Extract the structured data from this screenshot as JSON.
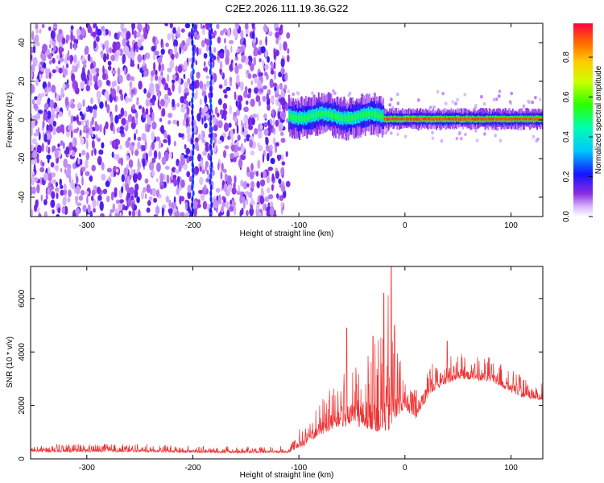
{
  "title": "C2E2.2026.111.19.36.G22",
  "chart_data": [
    {
      "type": "heatmap",
      "xlabel": "Height of straight line (km)",
      "ylabel": "Frequency (Hz)",
      "xlim": [
        -353,
        130
      ],
      "ylim": [
        -50,
        50
      ],
      "xticks": [
        -300,
        -200,
        -100,
        0,
        100
      ],
      "yticks": [
        -40,
        -20,
        0,
        20,
        40
      ],
      "colorbar": {
        "label": "Normalized spectral amplitude",
        "range": [
          0,
          0.97
        ],
        "ticks": [
          0.0,
          0.2,
          0.4,
          0.6,
          0.8
        ]
      },
      "regions": [
        {
          "name": "noise",
          "x_range": [
            -353,
            -110
          ],
          "freq_range": [
            -50,
            50
          ],
          "amplitude": "low, scattered"
        },
        {
          "name": "onset",
          "x_range": [
            -110,
            -20
          ],
          "freq_center": 2,
          "freq_width": 6,
          "amplitude": "0.3-0.6"
        },
        {
          "name": "signal",
          "x_range": [
            -20,
            130
          ],
          "freq_center": 0.5,
          "freq_width": 3,
          "amplitude": "0.8-0.97"
        }
      ]
    },
    {
      "type": "line",
      "xlabel": "Height of straight line (km)",
      "ylabel": "SNR (10 * v/v)",
      "xlim": [
        -353,
        130
      ],
      "ylim": [
        0,
        7200
      ],
      "xticks": [
        -300,
        -200,
        -100,
        0,
        100
      ],
      "yticks": [
        0,
        2000,
        4000,
        6000
      ],
      "color": "#f03232",
      "envelope": [
        {
          "x": -353,
          "base": 250,
          "amp": 300
        },
        {
          "x": -250,
          "base": 260,
          "amp": 300
        },
        {
          "x": -180,
          "base": 220,
          "amp": 250
        },
        {
          "x": -110,
          "base": 230,
          "amp": 250
        },
        {
          "x": -95,
          "base": 500,
          "amp": 900
        },
        {
          "x": -80,
          "base": 900,
          "amp": 1300
        },
        {
          "x": -60,
          "base": 1200,
          "amp": 2000
        },
        {
          "x": -40,
          "base": 1200,
          "amp": 2800
        },
        {
          "x": -25,
          "base": 1000,
          "amp": 3500
        },
        {
          "x": -15,
          "base": 1000,
          "amp": 5500
        },
        {
          "x": -8,
          "base": 1500,
          "amp": 3000
        },
        {
          "x": 0,
          "base": 1900,
          "amp": 1200
        },
        {
          "x": 10,
          "base": 1500,
          "amp": 1500
        },
        {
          "x": 25,
          "base": 2500,
          "amp": 1200
        },
        {
          "x": 50,
          "base": 3000,
          "amp": 1000
        },
        {
          "x": 80,
          "base": 2900,
          "amp": 900
        },
        {
          "x": 110,
          "base": 2300,
          "amp": 800
        },
        {
          "x": 130,
          "base": 2200,
          "amp": 700
        }
      ],
      "spikes": [
        {
          "x": -20,
          "y": 6200
        },
        {
          "x": -13,
          "y": 7200
        },
        {
          "x": -10,
          "y": 5000
        },
        {
          "x": -55,
          "y": 4900
        },
        {
          "x": -30,
          "y": 4600
        },
        {
          "x": 40,
          "y": 4400
        }
      ]
    }
  ]
}
